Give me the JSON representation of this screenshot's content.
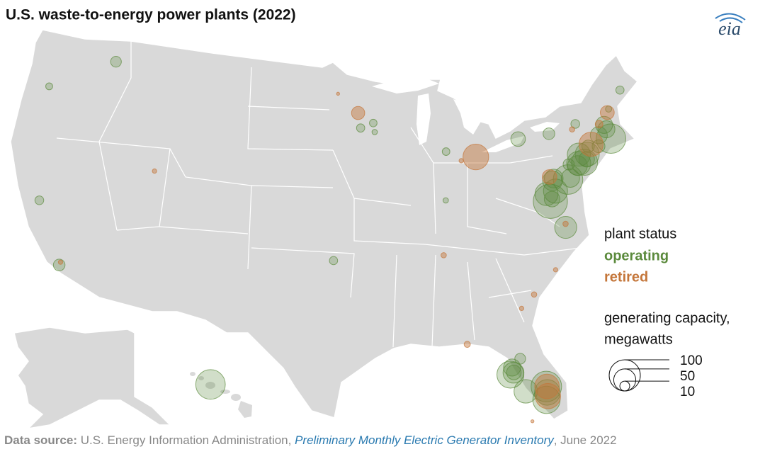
{
  "chart_data": {
    "type": "bubble_map",
    "title": "U.S. waste-to-energy power plants (2022)",
    "logo": "eia",
    "legend_title": "plant status",
    "size_legend": {
      "title_lines": [
        "generating capacity,",
        "megawatts"
      ],
      "values": [
        100,
        50,
        10
      ]
    },
    "source": {
      "label": "Data source:",
      "text": "U.S. Energy Information Administration,",
      "link": "Preliminary Monthly Electric Generator Inventory",
      "date": ", June 2022"
    },
    "series": [
      {
        "name": "operating",
        "color": "#5b8a3c",
        "lon": [
          -117.4,
          -123.0,
          -121.1,
          -118.2,
          -93.4,
          -92.2,
          -92.1,
          -85.67,
          -86.16,
          -95.95,
          -79.0,
          -76.15,
          -73.6,
          -68.8,
          -70.3,
          -70.98,
          -71.08,
          -71.78,
          -70.8,
          -73.2,
          -72.95,
          -72.05,
          -73.6,
          -73.93,
          -73.35,
          -74.12,
          -74.27,
          -75.12,
          -75.0,
          -75.35,
          -76.55,
          -76.7,
          -76.62,
          -77.43,
          -77.23,
          -77.05,
          -76.4,
          -82.45,
          -82.42,
          -82.5,
          -82.7,
          -81.8,
          -80.35,
          -80.2,
          -80.2,
          -81.75,
          -158.1
        ],
        "lat": [
          47.7,
          45.0,
          37.6,
          33.8,
          44.9,
          45.2,
          44.6,
          42.96,
          39.77,
          36.2,
          43.1,
          43.05,
          43.3,
          44.7,
          43.7,
          42.45,
          42.77,
          42.2,
          41.78,
          41.17,
          41.67,
          41.5,
          40.7,
          41.28,
          40.86,
          40.72,
          40.6,
          39.9,
          40.8,
          39.84,
          40.1,
          39.97,
          39.27,
          39.2,
          38.68,
          38.8,
          36.8,
          27.95,
          27.96,
          28.3,
          27.85,
          28.8,
          25.82,
          26.3,
          26.7,
          26.6,
          21.4
        ],
        "values": [
          12,
          5,
          8,
          14,
          7,
          6,
          3,
          6,
          3,
          7,
          22,
          14,
          8,
          7,
          4,
          30,
          30,
          30,
          90,
          60,
          16,
          17,
          70,
          55,
          25,
          60,
          40,
          35,
          13,
          90,
          36,
          40,
          60,
          55,
          120,
          25,
          50,
          45,
          22,
          30,
          75,
          12,
          77,
          67,
          96,
          57,
          90
        ]
      },
      {
        "name": "retired",
        "color": "#c4763a",
        "lon": [
          -118.15,
          -93.6,
          -95.5,
          -83.05,
          -84.4,
          -86.8,
          -70.5,
          -72.65,
          -76.88,
          -76.35,
          -77.9,
          -79.95,
          -81.1,
          -85.66,
          -80.2,
          -80.15,
          -111.9,
          -81.6,
          -74.0,
          -71.5
        ],
        "lat": [
          34.0,
          45.9,
          47.2,
          42.37,
          42.25,
          36.2,
          43.5,
          41.75,
          40.26,
          37.03,
          34.2,
          32.85,
          32.08,
          30.2,
          26.05,
          26.7,
          41.1,
          24.55,
          43.0,
          42.9
        ],
        "values": [
          2,
          18,
          1,
          68,
          2,
          3,
          20,
          60,
          22,
          3,
          2,
          3,
          2,
          4,
          66,
          62,
          2,
          1,
          3,
          6
        ]
      }
    ]
  }
}
